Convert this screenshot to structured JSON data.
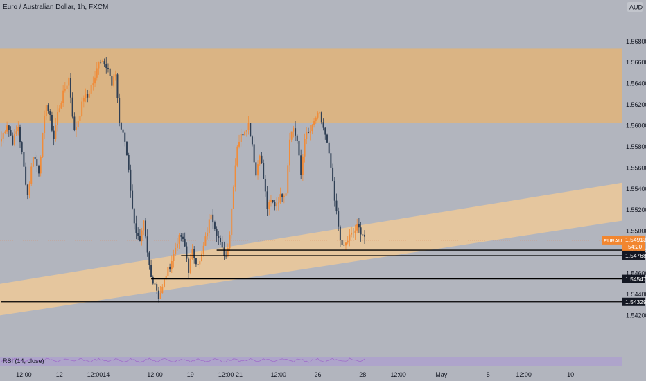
{
  "header": {
    "title": "Euro / Australian Dollar, 1h, FXCM",
    "currency": "AUD"
  },
  "indicator": {
    "label": "RSI (14, close)"
  },
  "price_tag": {
    "symbol": "EURAUD",
    "price": "1.54913",
    "countdown": "54:20"
  },
  "colors": {
    "background": "#b2b5be",
    "zone": "#e0b47a",
    "channel": "#edc999",
    "up": "#f08c3a",
    "down": "#2f3f54",
    "tag": "#f2862f",
    "rsi": "#9f6ec8",
    "rsi_band": "#ab95d6"
  },
  "chart_data": {
    "type": "candlestick",
    "title": "Euro / Australian Dollar, 1h, FXCM",
    "y_ticks": [
      "1.56800",
      "1.56600",
      "1.56400",
      "1.56200",
      "1.56000",
      "1.55800",
      "1.55600",
      "1.55400",
      "1.55200",
      "1.55000",
      "1.54800",
      "1.54600",
      "1.54400",
      "1.54200"
    ],
    "y_tick_values": [
      1.568,
      1.566,
      1.564,
      1.562,
      1.56,
      1.558,
      1.556,
      1.554,
      1.552,
      1.55,
      1.548,
      1.546,
      1.544,
      1.542
    ],
    "ylim": [
      1.5392,
      1.5693
    ],
    "x_ticks": [
      "12:00",
      "12",
      "12:00",
      "14",
      "12:00",
      "19",
      "12:00",
      "21",
      "12:00",
      "26",
      "28",
      "12:00",
      "May",
      "5",
      "12:00",
      "10"
    ],
    "x_tick_index": [
      12,
      31,
      50,
      56,
      82,
      101,
      120,
      127,
      148,
      169,
      193,
      212,
      235,
      260,
      279,
      304
    ],
    "supply_zone": {
      "from": 1.56025,
      "to": 1.5673
    },
    "channel": {
      "lower_start": 1.542,
      "lower_end": 1.551,
      "upper_start": 1.545,
      "upper_end": 1.5546
    },
    "levels": [
      {
        "value": "1.54820",
        "price": 1.5482,
        "from_index": 115
      },
      {
        "value": "1.54768",
        "price": 1.54768,
        "from_index": 96
      },
      {
        "value": "1.54547",
        "price": 1.54547,
        "from_index": 80
      },
      {
        "value": "1.54329",
        "price": 1.54329,
        "from_index": 0
      }
    ],
    "last_price": 1.54913,
    "anchors": [
      [
        0,
        1.5588
      ],
      [
        3,
        1.5602
      ],
      [
        6,
        1.5585
      ],
      [
        9,
        1.5599
      ],
      [
        12,
        1.556
      ],
      [
        14,
        1.5534
      ],
      [
        17,
        1.5573
      ],
      [
        20,
        1.5557
      ],
      [
        22,
        1.559
      ],
      [
        24,
        1.5622
      ],
      [
        26,
        1.5607
      ],
      [
        28,
        1.5588
      ],
      [
        30,
        1.5612
      ],
      [
        33,
        1.563
      ],
      [
        36,
        1.5645
      ],
      [
        39,
        1.5594
      ],
      [
        42,
        1.5612
      ],
      [
        44,
        1.5628
      ],
      [
        46,
        1.5627
      ],
      [
        48,
        1.5638
      ],
      [
        50,
        1.5644
      ],
      [
        52,
        1.5663
      ],
      [
        55,
        1.5661
      ],
      [
        57,
        1.5655
      ],
      [
        59,
        1.5637
      ],
      [
        61,
        1.565
      ],
      [
        63,
        1.5603
      ],
      [
        66,
        1.5585
      ],
      [
        68,
        1.556
      ],
      [
        70,
        1.552
      ],
      [
        72,
        1.55
      ],
      [
        74,
        1.5488
      ],
      [
        76,
        1.5507
      ],
      [
        78,
        1.5478
      ],
      [
        80,
        1.5456
      ],
      [
        82,
        1.5451
      ],
      [
        84,
        1.5438
      ],
      [
        86,
        1.5446
      ],
      [
        88,
        1.5459
      ],
      [
        90,
        1.5467
      ],
      [
        92,
        1.5478
      ],
      [
        94,
        1.5491
      ],
      [
        96,
        1.5495
      ],
      [
        98,
        1.5485
      ],
      [
        100,
        1.5463
      ],
      [
        102,
        1.548
      ],
      [
        104,
        1.5472
      ],
      [
        106,
        1.547
      ],
      [
        108,
        1.5485
      ],
      [
        110,
        1.55
      ],
      [
        112,
        1.5518
      ],
      [
        114,
        1.5505
      ],
      [
        116,
        1.5493
      ],
      [
        118,
        1.5482
      ],
      [
        120,
        1.5476
      ],
      [
        122,
        1.5498
      ],
      [
        124,
        1.5545
      ],
      [
        126,
        1.5582
      ],
      [
        128,
        1.559
      ],
      [
        130,
        1.5597
      ],
      [
        132,
        1.5602
      ],
      [
        134,
        1.5583
      ],
      [
        136,
        1.5553
      ],
      [
        138,
        1.5575
      ],
      [
        140,
        1.555
      ],
      [
        142,
        1.5522
      ],
      [
        144,
        1.5528
      ],
      [
        146,
        1.5525
      ],
      [
        148,
        1.553
      ],
      [
        150,
        1.5535
      ],
      [
        152,
        1.5538
      ],
      [
        154,
        1.559
      ],
      [
        156,
        1.5598
      ],
      [
        158,
        1.5585
      ],
      [
        160,
        1.5553
      ],
      [
        162,
        1.559
      ],
      [
        164,
        1.5592
      ],
      [
        166,
        1.5598
      ],
      [
        168,
        1.5608
      ],
      [
        170,
        1.561
      ],
      [
        172,
        1.5598
      ],
      [
        174,
        1.5582
      ],
      [
        176,
        1.556
      ],
      [
        178,
        1.5528
      ],
      [
        180,
        1.5505
      ],
      [
        182,
        1.5484
      ],
      [
        184,
        1.5488
      ],
      [
        186,
        1.5495
      ],
      [
        188,
        1.5498
      ],
      [
        190,
        1.5504
      ],
      [
        192,
        1.55
      ],
      [
        194,
        1.5495
      ]
    ]
  }
}
